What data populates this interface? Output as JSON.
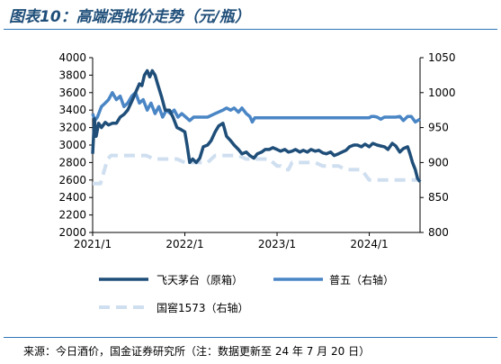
{
  "title": "图表10：高端酒批价走势（元/瓶）",
  "source": "来源：今日酒价，国金证券研究所（注：数据更新至 24 年 7 月 20 日）",
  "colors": {
    "feitian": "#1f4e79",
    "puwu": "#4a86c5",
    "guojiao": "#cfdff0",
    "accent": "#2e75b6"
  },
  "chart_data": {
    "type": "line",
    "x_ticks": [
      "2021/1",
      "2022/1",
      "2023/1",
      "2024/1"
    ],
    "y_left": {
      "min": 2000,
      "max": 4000,
      "ticks": [
        2000,
        2200,
        2400,
        2600,
        2800,
        3000,
        3200,
        3400,
        3600,
        3800,
        4000
      ]
    },
    "y_right": {
      "min": 800,
      "max": 1050,
      "ticks": [
        800,
        850,
        900,
        950,
        1000,
        1050
      ]
    },
    "legend": [
      {
        "name": "飞天茅台（原箱）",
        "series": "feitian"
      },
      {
        "name": "普五（右轴）",
        "series": "puwu"
      },
      {
        "name": "国窖1573（右轴）",
        "series": "guojiao"
      }
    ],
    "series": [
      {
        "name": "飞天茅台（原箱）",
        "key": "feitian",
        "axis": "left",
        "x": [
          "2021-01-01",
          "2021-01-08",
          "2021-01-15",
          "2021-01-25",
          "2021-02-05",
          "2021-02-20",
          "2021-03-05",
          "2021-03-20",
          "2021-04-05",
          "2021-04-20",
          "2021-05-05",
          "2021-05-20",
          "2021-06-05",
          "2021-06-20",
          "2021-07-05",
          "2021-07-15",
          "2021-07-25",
          "2021-08-05",
          "2021-08-15",
          "2021-08-25",
          "2021-09-05",
          "2021-09-15",
          "2021-10-01",
          "2021-10-15",
          "2021-11-01",
          "2021-11-15",
          "2021-12-01",
          "2021-12-15",
          "2022-01-01",
          "2022-01-10",
          "2022-01-20",
          "2022-02-01",
          "2022-02-15",
          "2022-03-01",
          "2022-03-15",
          "2022-04-01",
          "2022-04-15",
          "2022-05-01",
          "2022-05-15",
          "2022-06-01",
          "2022-06-15",
          "2022-07-01",
          "2022-07-15",
          "2022-08-01",
          "2022-08-15",
          "2022-09-01",
          "2022-09-15",
          "2022-10-01",
          "2022-10-15",
          "2022-11-01",
          "2022-11-15",
          "2022-12-01",
          "2022-12-15",
          "2023-01-01",
          "2023-01-15",
          "2023-02-01",
          "2023-02-15",
          "2023-03-01",
          "2023-03-15",
          "2023-04-01",
          "2023-04-15",
          "2023-05-01",
          "2023-05-15",
          "2023-06-01",
          "2023-06-15",
          "2023-07-01",
          "2023-07-15",
          "2023-08-01",
          "2023-08-15",
          "2023-09-01",
          "2023-09-15",
          "2023-10-01",
          "2023-10-15",
          "2023-11-01",
          "2023-11-15",
          "2023-12-01",
          "2023-12-15",
          "2024-01-01",
          "2024-01-15",
          "2024-02-01",
          "2024-02-15",
          "2024-03-01",
          "2024-03-15",
          "2024-04-01",
          "2024-04-15",
          "2024-05-01",
          "2024-05-15",
          "2024-06-01",
          "2024-06-10",
          "2024-06-20",
          "2024-07-01",
          "2024-07-10",
          "2024-07-20"
        ],
        "values": [
          2900,
          3300,
          3100,
          3250,
          3200,
          3260,
          3230,
          3250,
          3250,
          3320,
          3350,
          3400,
          3500,
          3600,
          3700,
          3680,
          3800,
          3850,
          3780,
          3850,
          3800,
          3700,
          3550,
          3400,
          3400,
          3320,
          3200,
          3180,
          3150,
          3000,
          2800,
          2840,
          2800,
          2850,
          2980,
          3000,
          3050,
          3150,
          3220,
          3250,
          3100,
          3050,
          3000,
          2950,
          2900,
          2920,
          2880,
          2850,
          2900,
          2920,
          2950,
          2950,
          2970,
          2950,
          2930,
          2950,
          2920,
          2930,
          2950,
          2920,
          2940,
          2920,
          2950,
          2930,
          2940,
          2910,
          2900,
          2920,
          2880,
          2900,
          2920,
          2940,
          2980,
          3000,
          3000,
          2980,
          3010,
          2980,
          3020,
          3000,
          2990,
          2980,
          2950,
          3020,
          2990,
          2920,
          2960,
          2980,
          2900,
          2800,
          2720,
          2620,
          2580
        ]
      },
      {
        "name": "普五（右轴）",
        "key": "puwu",
        "axis": "right",
        "x": [
          "2021-01-01",
          "2021-01-10",
          "2021-01-20",
          "2021-02-05",
          "2021-02-20",
          "2021-03-05",
          "2021-03-20",
          "2021-04-05",
          "2021-04-20",
          "2021-05-05",
          "2021-05-20",
          "2021-06-05",
          "2021-06-20",
          "2021-07-05",
          "2021-07-20",
          "2021-08-05",
          "2021-08-20",
          "2021-09-05",
          "2021-09-20",
          "2021-10-05",
          "2021-10-20",
          "2021-11-05",
          "2021-11-20",
          "2021-12-05",
          "2021-12-20",
          "2022-01-05",
          "2022-01-20",
          "2022-02-05",
          "2022-03-01",
          "2022-04-01",
          "2022-05-01",
          "2022-06-01",
          "2022-06-15",
          "2022-07-01",
          "2022-07-15",
          "2022-08-01",
          "2022-08-15",
          "2022-09-01",
          "2022-09-15",
          "2022-09-25",
          "2022-10-05",
          "2022-10-20",
          "2022-11-10",
          "2022-12-05",
          "2023-01-01",
          "2023-02-01",
          "2023-03-01",
          "2023-04-01",
          "2023-05-01",
          "2023-06-01",
          "2023-07-01",
          "2023-08-01",
          "2023-09-01",
          "2023-10-01",
          "2023-11-01",
          "2023-12-01",
          "2024-01-01",
          "2024-01-10",
          "2024-01-20",
          "2024-02-01",
          "2024-02-15",
          "2024-03-01",
          "2024-03-15",
          "2024-04-01",
          "2024-04-15",
          "2024-05-01",
          "2024-05-15",
          "2024-06-01",
          "2024-06-15",
          "2024-07-01",
          "2024-07-20"
        ],
        "values": [
          970,
          960,
          965,
          980,
          985,
          990,
          1000,
          990,
          995,
          980,
          985,
          995,
          1000,
          985,
          990,
          975,
          985,
          970,
          980,
          965,
          975,
          970,
          975,
          965,
          970,
          965,
          960,
          965,
          965,
          965,
          970,
          975,
          978,
          975,
          978,
          972,
          978,
          970,
          966,
          958,
          964,
          964,
          964,
          964,
          964,
          964,
          964,
          964,
          964,
          964,
          964,
          964,
          964,
          964,
          964,
          964,
          964,
          966,
          966,
          965,
          962,
          965,
          965,
          965,
          965,
          966,
          960,
          966,
          966,
          958,
          962
        ]
      },
      {
        "name": "国窖1573（右轴）",
        "key": "guojiao",
        "axis": "right",
        "x": [
          "2021-01-01",
          "2021-02-01",
          "2021-03-01",
          "2021-03-15",
          "2021-04-01",
          "2021-05-01",
          "2021-06-01",
          "2021-07-01",
          "2021-08-01",
          "2021-09-01",
          "2021-10-01",
          "2021-11-01",
          "2021-12-01",
          "2022-01-01",
          "2022-02-01",
          "2022-03-01",
          "2022-04-01",
          "2022-05-01",
          "2022-06-01",
          "2022-07-01",
          "2022-08-01",
          "2022-09-01",
          "2022-10-01",
          "2022-11-01",
          "2022-12-01",
          "2023-01-01",
          "2023-01-15",
          "2023-02-01",
          "2023-02-15",
          "2023-03-01",
          "2023-04-01",
          "2023-05-01",
          "2023-06-01",
          "2023-07-01",
          "2023-08-01",
          "2023-09-01",
          "2023-10-01",
          "2023-11-01",
          "2023-12-01",
          "2024-01-01",
          "2024-02-01",
          "2024-03-01",
          "2024-04-01",
          "2024-05-01",
          "2024-06-01",
          "2024-07-01",
          "2024-07-20"
        ],
        "values": [
          870,
          870,
          905,
          910,
          910,
          910,
          910,
          910,
          910,
          905,
          905,
          905,
          905,
          900,
          900,
          900,
          900,
          910,
          910,
          910,
          910,
          905,
          905,
          905,
          905,
          895,
          895,
          890,
          890,
          900,
          900,
          900,
          900,
          895,
          895,
          895,
          890,
          890,
          890,
          875,
          875,
          875,
          875,
          875,
          875,
          875,
          875
        ]
      }
    ]
  }
}
